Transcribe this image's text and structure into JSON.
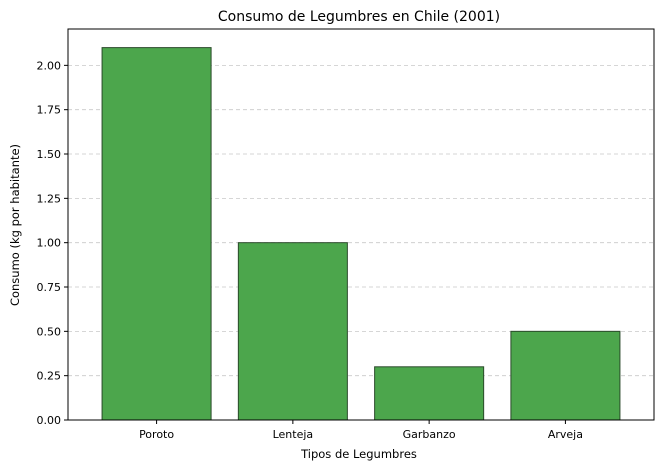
{
  "chart_data": {
    "type": "bar",
    "title": "Consumo de Legumbres en Chile (2001)",
    "xlabel": "Tipos de Legumbres",
    "ylabel": "Consumo (kg por habitante)",
    "categories": [
      "Poroto",
      "Lenteja",
      "Garbanzo",
      "Arveja"
    ],
    "values": [
      2.1,
      1.0,
      0.3,
      0.5
    ],
    "ylim": [
      0,
      2.205
    ],
    "yticks": [
      0.0,
      0.25,
      0.5,
      0.75,
      1.0,
      1.25,
      1.5,
      1.75,
      2.0
    ],
    "ytick_labels": [
      "0.00",
      "0.25",
      "0.50",
      "0.75",
      "1.00",
      "1.25",
      "1.50",
      "1.75",
      "2.00"
    ],
    "grid": "y-dashed",
    "bar_color": "#4ca64c",
    "bar_edge_color": "#2a4a2a",
    "grid_color": "#c8c8c8"
  }
}
